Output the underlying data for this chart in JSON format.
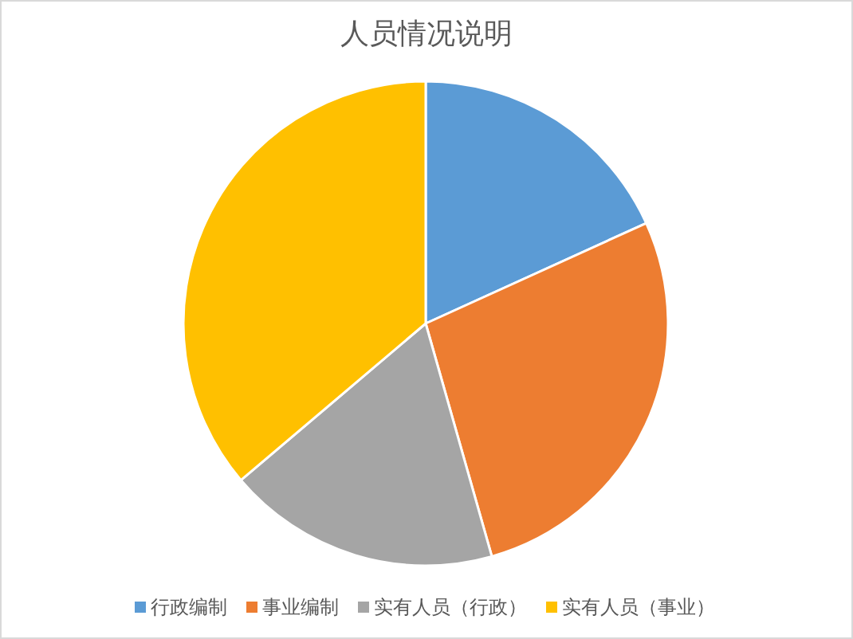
{
  "chart_data": {
    "type": "pie",
    "title": "人员情况说明",
    "categories": [
      "行政编制",
      "事业编制",
      "实有人员（行政）",
      "实有人员（事业）"
    ],
    "values": [
      18.2,
      27.4,
      18.2,
      36.2
    ],
    "colors": [
      "#5b9bd5",
      "#ed7d31",
      "#a5a5a5",
      "#ffc000"
    ],
    "legend": "bottom"
  }
}
